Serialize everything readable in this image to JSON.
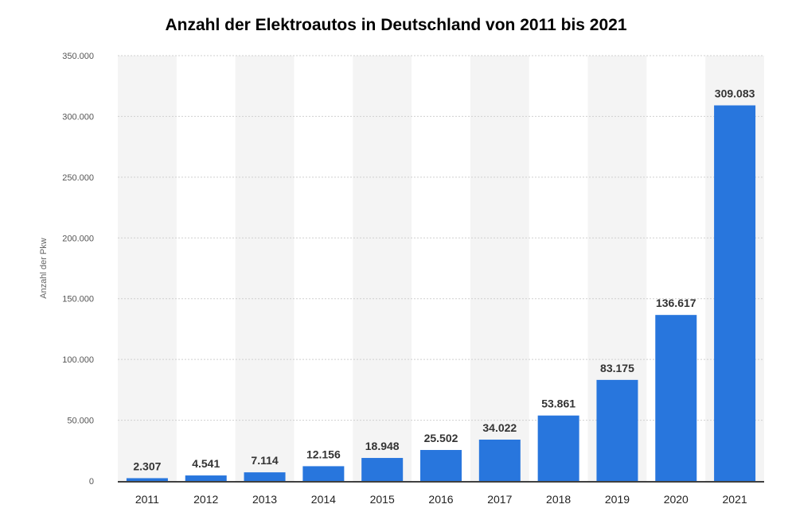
{
  "chart_data": {
    "type": "bar",
    "title": "Anzahl der Elektroautos in Deutschland von 2011 bis 2021",
    "xlabel": "",
    "ylabel": "Anzahl der Pkw",
    "categories": [
      "2011",
      "2012",
      "2013",
      "2014",
      "2015",
      "2016",
      "2017",
      "2018",
      "2019",
      "2020",
      "2021"
    ],
    "values": [
      2307,
      4541,
      7114,
      12156,
      18948,
      25502,
      34022,
      53861,
      83175,
      136617,
      309083
    ],
    "value_labels": [
      "2.307",
      "4.541",
      "7.114",
      "12.156",
      "18.948",
      "25.502",
      "34.022",
      "53.861",
      "83.175",
      "136.617",
      "309.083"
    ],
    "ylim": [
      0,
      350000
    ],
    "yticks": [
      0,
      50000,
      100000,
      150000,
      200000,
      250000,
      300000,
      350000
    ],
    "ytick_labels": [
      "0",
      "50.000",
      "100.000",
      "150.000",
      "200.000",
      "250.000",
      "300.000",
      "350.000"
    ],
    "grid": true,
    "legend": "none"
  },
  "colors": {
    "bar": "#2876dd",
    "band": "#f4f4f4",
    "grid": "#cfcfcf",
    "axis": "#000000"
  }
}
